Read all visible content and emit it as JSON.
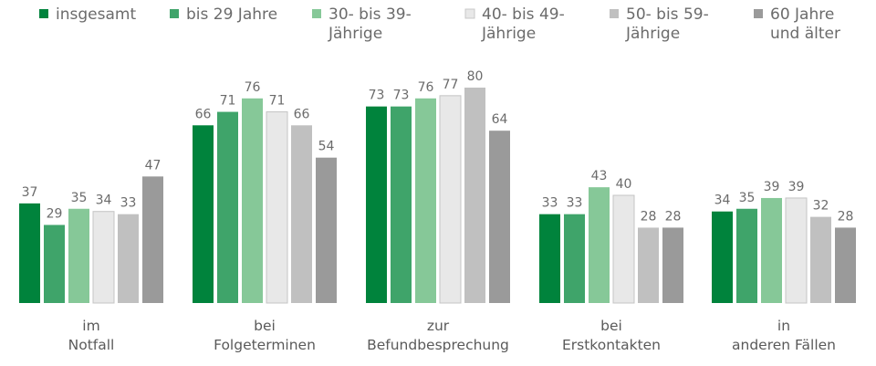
{
  "chart_data": {
    "type": "bar",
    "categories": [
      [
        "im",
        "Notfall"
      ],
      [
        "bei",
        "Folgeterminen"
      ],
      [
        "zur",
        "Befundbesprechung"
      ],
      [
        "bei",
        "Erstkontakten"
      ],
      [
        "in",
        "anderen Fällen"
      ]
    ],
    "series": [
      {
        "name": [
          "insgesamt"
        ],
        "color": "#00833c",
        "values": [
          37,
          66,
          73,
          33,
          34
        ]
      },
      {
        "name": [
          "bis 29 Jahre"
        ],
        "color": "#3fa46a",
        "values": [
          29,
          71,
          73,
          33,
          35
        ]
      },
      {
        "name": [
          "30- bis 39-",
          "Jährige"
        ],
        "color": "#86c898",
        "values": [
          35,
          76,
          76,
          43,
          39
        ]
      },
      {
        "name": [
          "40- bis 49-",
          "Jährige"
        ],
        "color": "#e8e8e8",
        "values": [
          34,
          71,
          77,
          40,
          39
        ]
      },
      {
        "name": [
          "50- bis 59-",
          "Jährige"
        ],
        "color": "#c0c0c0",
        "values": [
          33,
          66,
          80,
          28,
          32
        ]
      },
      {
        "name": [
          "60 Jahre",
          "und älter"
        ],
        "color": "#9a9a9a",
        "values": [
          47,
          54,
          64,
          28,
          28
        ]
      }
    ],
    "ylim": [
      0,
      100
    ],
    "grid": false,
    "legend": "top",
    "title": "",
    "xlabel": "",
    "ylabel": ""
  }
}
